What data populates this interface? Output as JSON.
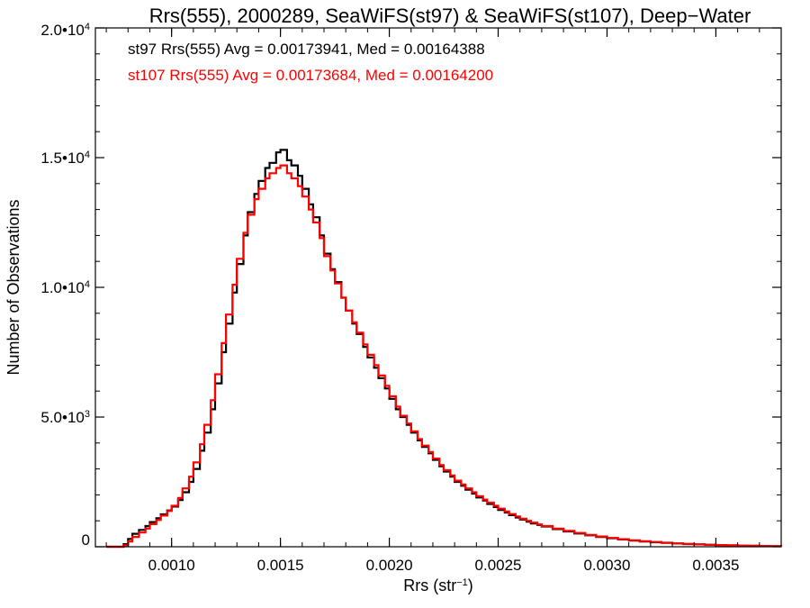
{
  "chart_data": {
    "type": "line",
    "title": "Rrs(555), 2000289, SeaWiFS(st97) & SeaWiFS(st107), Deep−Water",
    "xlabel": "Rrs (str",
    "xlabel_sup": "−1",
    "xlabel_close": ")",
    "ylabel": "Number of Observations",
    "xlim": [
      0.00065,
      0.0038
    ],
    "ylim": [
      0,
      20000
    ],
    "grid": false,
    "legend_position": "top-left",
    "x_ticks": [
      {
        "value": 0.001,
        "label": "0.0010"
      },
      {
        "value": 0.0015,
        "label": "0.0015"
      },
      {
        "value": 0.002,
        "label": "0.0020"
      },
      {
        "value": 0.0025,
        "label": "0.0025"
      },
      {
        "value": 0.003,
        "label": "0.0030"
      },
      {
        "value": 0.0035,
        "label": "0.0035"
      }
    ],
    "y_ticks": [
      {
        "value": 0,
        "mantissa": "0",
        "exp": ""
      },
      {
        "value": 5000,
        "mantissa": "5.0•10",
        "exp": "3"
      },
      {
        "value": 10000,
        "mantissa": "1.0•10",
        "exp": "4"
      },
      {
        "value": 15000,
        "mantissa": "1.5•10",
        "exp": "4"
      },
      {
        "value": 20000,
        "mantissa": "2.0•10",
        "exp": "4"
      }
    ],
    "series": [
      {
        "name": "st97",
        "color": "#000000",
        "legend_text": "st97 Rrs(555) Avg = 0.00173941, Med = 0.00164388",
        "points": [
          [
            0.0007,
            0
          ],
          [
            0.00075,
            0
          ],
          [
            0.00078,
            100
          ],
          [
            0.0008,
            300
          ],
          [
            0.00082,
            500
          ],
          [
            0.00085,
            650
          ],
          [
            0.00088,
            800
          ],
          [
            0.0009,
            950
          ],
          [
            0.00093,
            1100
          ],
          [
            0.00095,
            1250
          ],
          [
            0.00098,
            1400
          ],
          [
            0.001,
            1550
          ],
          [
            0.00103,
            1800
          ],
          [
            0.00105,
            2100
          ],
          [
            0.00108,
            2500
          ],
          [
            0.0011,
            3000
          ],
          [
            0.00113,
            3700
          ],
          [
            0.00115,
            4400
          ],
          [
            0.00118,
            5300
          ],
          [
            0.0012,
            6300
          ],
          [
            0.00123,
            7500
          ],
          [
            0.00125,
            8600
          ],
          [
            0.00128,
            9800
          ],
          [
            0.0013,
            10900
          ],
          [
            0.00133,
            12000
          ],
          [
            0.00135,
            12900
          ],
          [
            0.00138,
            13600
          ],
          [
            0.0014,
            14100
          ],
          [
            0.00143,
            14600
          ],
          [
            0.00145,
            14800
          ],
          [
            0.00148,
            15200
          ],
          [
            0.0015,
            15300
          ],
          [
            0.00153,
            14900
          ],
          [
            0.00155,
            14700
          ],
          [
            0.00158,
            14300
          ],
          [
            0.0016,
            13800
          ],
          [
            0.00163,
            13200
          ],
          [
            0.00165,
            12700
          ],
          [
            0.00168,
            12000
          ],
          [
            0.0017,
            11300
          ],
          [
            0.00173,
            10700
          ],
          [
            0.00175,
            10200
          ],
          [
            0.00178,
            9600
          ],
          [
            0.0018,
            9100
          ],
          [
            0.00183,
            8600
          ],
          [
            0.00185,
            8200
          ],
          [
            0.00188,
            7700
          ],
          [
            0.0019,
            7300
          ],
          [
            0.00193,
            6900
          ],
          [
            0.00195,
            6500
          ],
          [
            0.00198,
            6100
          ],
          [
            0.002,
            5700
          ],
          [
            0.00203,
            5300
          ],
          [
            0.00205,
            5000
          ],
          [
            0.00208,
            4700
          ],
          [
            0.0021,
            4400
          ],
          [
            0.00213,
            4100
          ],
          [
            0.00215,
            3850
          ],
          [
            0.00218,
            3600
          ],
          [
            0.0022,
            3350
          ],
          [
            0.00223,
            3100
          ],
          [
            0.00225,
            2900
          ],
          [
            0.00228,
            2700
          ],
          [
            0.0023,
            2500
          ],
          [
            0.00233,
            2350
          ],
          [
            0.00235,
            2200
          ],
          [
            0.00238,
            2050
          ],
          [
            0.0024,
            1900
          ],
          [
            0.00243,
            1780
          ],
          [
            0.00245,
            1650
          ],
          [
            0.00248,
            1530
          ],
          [
            0.0025,
            1420
          ],
          [
            0.00253,
            1320
          ],
          [
            0.00255,
            1220
          ],
          [
            0.00258,
            1130
          ],
          [
            0.0026,
            1050
          ],
          [
            0.00263,
            970
          ],
          [
            0.00265,
            900
          ],
          [
            0.00268,
            840
          ],
          [
            0.0027,
            780
          ],
          [
            0.00275,
            680
          ],
          [
            0.0028,
            590
          ],
          [
            0.00285,
            510
          ],
          [
            0.0029,
            440
          ],
          [
            0.00295,
            380
          ],
          [
            0.003,
            330
          ],
          [
            0.00305,
            280
          ],
          [
            0.0031,
            240
          ],
          [
            0.00315,
            205
          ],
          [
            0.0032,
            175
          ],
          [
            0.00325,
            150
          ],
          [
            0.0033,
            125
          ],
          [
            0.00335,
            105
          ],
          [
            0.0034,
            90
          ],
          [
            0.00345,
            75
          ],
          [
            0.0035,
            62
          ],
          [
            0.00355,
            52
          ],
          [
            0.0036,
            43
          ],
          [
            0.00365,
            35
          ],
          [
            0.0037,
            28
          ],
          [
            0.00375,
            22
          ],
          [
            0.0038,
            18
          ]
        ]
      },
      {
        "name": "st107",
        "color": "#ff0000",
        "legend_text": "st107 Rrs(555) Avg = 0.00173684, Med = 0.00164200",
        "points": [
          [
            0.0007,
            0
          ],
          [
            0.00075,
            0
          ],
          [
            0.00078,
            60
          ],
          [
            0.0008,
            200
          ],
          [
            0.00082,
            380
          ],
          [
            0.00085,
            550
          ],
          [
            0.00088,
            700
          ],
          [
            0.0009,
            870
          ],
          [
            0.00093,
            1030
          ],
          [
            0.00095,
            1200
          ],
          [
            0.00098,
            1380
          ],
          [
            0.001,
            1580
          ],
          [
            0.00103,
            1880
          ],
          [
            0.00105,
            2250
          ],
          [
            0.00108,
            2700
          ],
          [
            0.0011,
            3250
          ],
          [
            0.00113,
            3950
          ],
          [
            0.00115,
            4700
          ],
          [
            0.00118,
            5650
          ],
          [
            0.0012,
            6650
          ],
          [
            0.00123,
            7850
          ],
          [
            0.00125,
            8950
          ],
          [
            0.00128,
            10100
          ],
          [
            0.0013,
            11100
          ],
          [
            0.00133,
            12100
          ],
          [
            0.00135,
            12800
          ],
          [
            0.00138,
            13400
          ],
          [
            0.0014,
            13800
          ],
          [
            0.00143,
            14200
          ],
          [
            0.00145,
            14400
          ],
          [
            0.00148,
            14600
          ],
          [
            0.0015,
            14700
          ],
          [
            0.00153,
            14400
          ],
          [
            0.00155,
            14200
          ],
          [
            0.00158,
            13900
          ],
          [
            0.0016,
            13500
          ],
          [
            0.00163,
            13000
          ],
          [
            0.00165,
            12500
          ],
          [
            0.00168,
            11900
          ],
          [
            0.0017,
            11200
          ],
          [
            0.00173,
            10650
          ],
          [
            0.00175,
            10150
          ],
          [
            0.00178,
            9600
          ],
          [
            0.0018,
            9100
          ],
          [
            0.00183,
            8650
          ],
          [
            0.00185,
            8250
          ],
          [
            0.00188,
            7800
          ],
          [
            0.0019,
            7400
          ],
          [
            0.00193,
            7000
          ],
          [
            0.00195,
            6600
          ],
          [
            0.00198,
            6200
          ],
          [
            0.002,
            5800
          ],
          [
            0.00203,
            5400
          ],
          [
            0.00205,
            5050
          ],
          [
            0.00208,
            4750
          ],
          [
            0.0021,
            4450
          ],
          [
            0.00213,
            4150
          ],
          [
            0.00215,
            3900
          ],
          [
            0.00218,
            3650
          ],
          [
            0.0022,
            3400
          ],
          [
            0.00223,
            3150
          ],
          [
            0.00225,
            2950
          ],
          [
            0.00228,
            2750
          ],
          [
            0.0023,
            2550
          ],
          [
            0.00233,
            2400
          ],
          [
            0.00235,
            2250
          ],
          [
            0.00238,
            2100
          ],
          [
            0.0024,
            1950
          ],
          [
            0.00243,
            1820
          ],
          [
            0.00245,
            1700
          ],
          [
            0.00248,
            1580
          ],
          [
            0.0025,
            1470
          ],
          [
            0.00253,
            1360
          ],
          [
            0.00255,
            1260
          ],
          [
            0.00258,
            1170
          ],
          [
            0.0026,
            1080
          ],
          [
            0.00263,
            1000
          ],
          [
            0.00265,
            930
          ],
          [
            0.00268,
            860
          ],
          [
            0.0027,
            800
          ],
          [
            0.00275,
            700
          ],
          [
            0.0028,
            610
          ],
          [
            0.00285,
            530
          ],
          [
            0.0029,
            460
          ],
          [
            0.00295,
            395
          ],
          [
            0.003,
            340
          ],
          [
            0.00305,
            290
          ],
          [
            0.0031,
            250
          ],
          [
            0.00315,
            215
          ],
          [
            0.0032,
            185
          ],
          [
            0.00325,
            155
          ],
          [
            0.0033,
            130
          ],
          [
            0.00335,
            110
          ],
          [
            0.0034,
            92
          ],
          [
            0.00345,
            78
          ],
          [
            0.0035,
            65
          ],
          [
            0.00355,
            54
          ],
          [
            0.0036,
            45
          ],
          [
            0.00365,
            37
          ],
          [
            0.0037,
            30
          ],
          [
            0.00375,
            24
          ],
          [
            0.0038,
            19
          ]
        ]
      }
    ]
  }
}
